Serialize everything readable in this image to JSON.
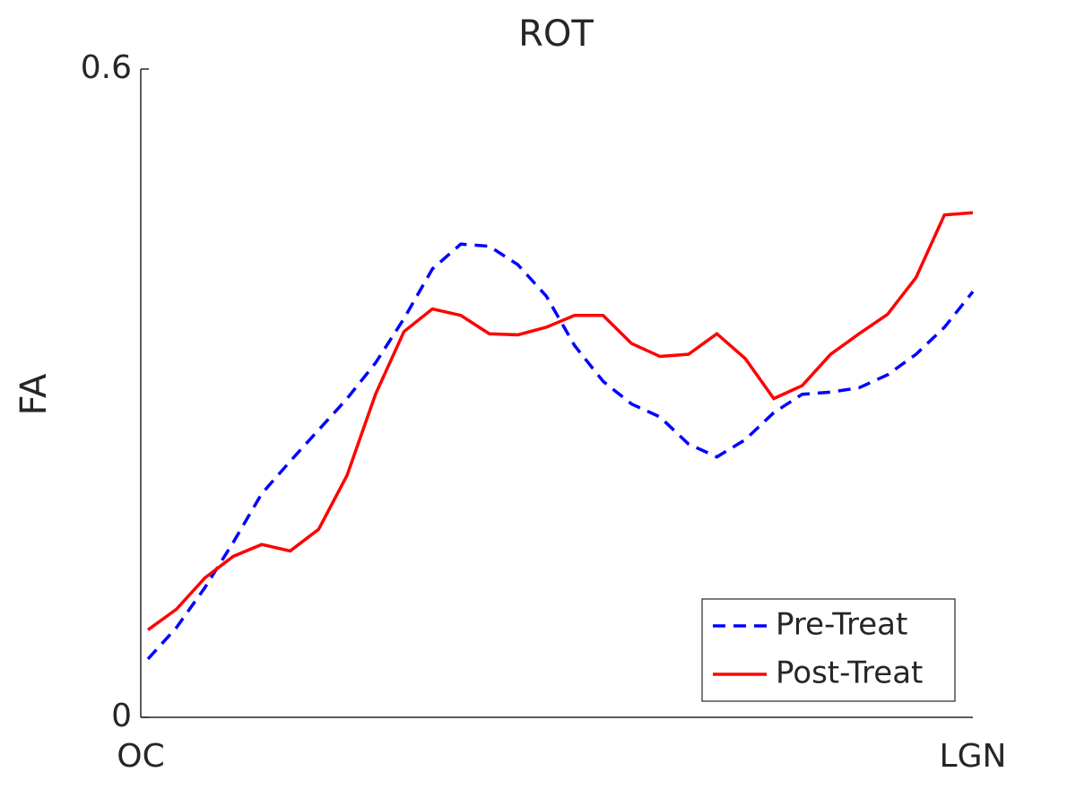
{
  "chart_data": {
    "type": "line",
    "title": "ROT",
    "y_label": "FA",
    "categories": [
      "OC",
      null,
      null,
      null,
      null,
      null,
      null,
      null,
      null,
      null,
      null,
      null,
      null,
      null,
      null,
      null,
      null,
      null,
      null,
      null,
      null,
      null,
      null,
      null,
      null,
      null,
      null,
      null,
      null,
      "LGN"
    ],
    "series": [
      {
        "name": "Pre-Treat",
        "color": "#0000ff",
        "dash": "dashed",
        "values": [
          0.054,
          0.083,
          0.12,
          0.162,
          0.207,
          0.237,
          0.266,
          0.295,
          0.328,
          0.369,
          0.415,
          0.438,
          0.436,
          0.419,
          0.39,
          0.344,
          0.311,
          0.29,
          0.278,
          0.253,
          0.241,
          0.257,
          0.282,
          0.299,
          0.301,
          0.305,
          0.317,
          0.336,
          0.361,
          0.394
        ]
      },
      {
        "name": "Post-Treat",
        "color": "#ff0000",
        "dash": "solid",
        "values": [
          0.081,
          0.1,
          0.129,
          0.149,
          0.16,
          0.154,
          0.174,
          0.224,
          0.299,
          0.357,
          0.378,
          0.372,
          0.355,
          0.354,
          0.361,
          0.372,
          0.372,
          0.346,
          0.334,
          0.336,
          0.355,
          0.332,
          0.295,
          0.307,
          0.336,
          0.355,
          0.373,
          0.407,
          0.465,
          0.467
        ]
      }
    ],
    "ylim": [
      0,
      0.6
    ],
    "yticks": [
      0,
      0.6
    ],
    "legend": "lower right",
    "grid": false
  }
}
